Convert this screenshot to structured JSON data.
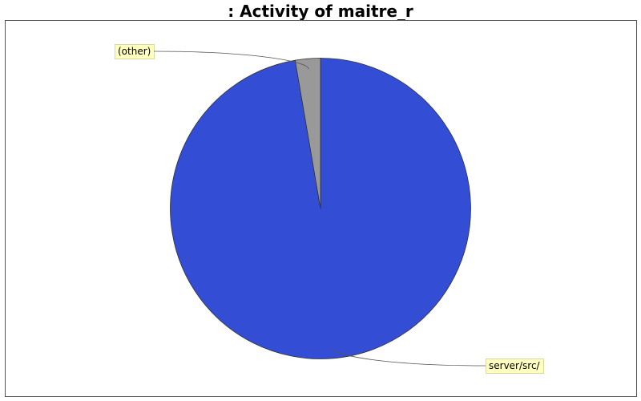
{
  "chart_data": {
    "type": "pie",
    "title": ": Activity of maitre_r",
    "start_angle_deg": 90,
    "direction": "clockwise",
    "slices": [
      {
        "label": "server/src/",
        "value": 97.3,
        "color": "#334ed4"
      },
      {
        "label": "(other)",
        "value": 2.7,
        "color": "#999999"
      }
    ],
    "legend": "none",
    "label_style": "callout boxes"
  }
}
